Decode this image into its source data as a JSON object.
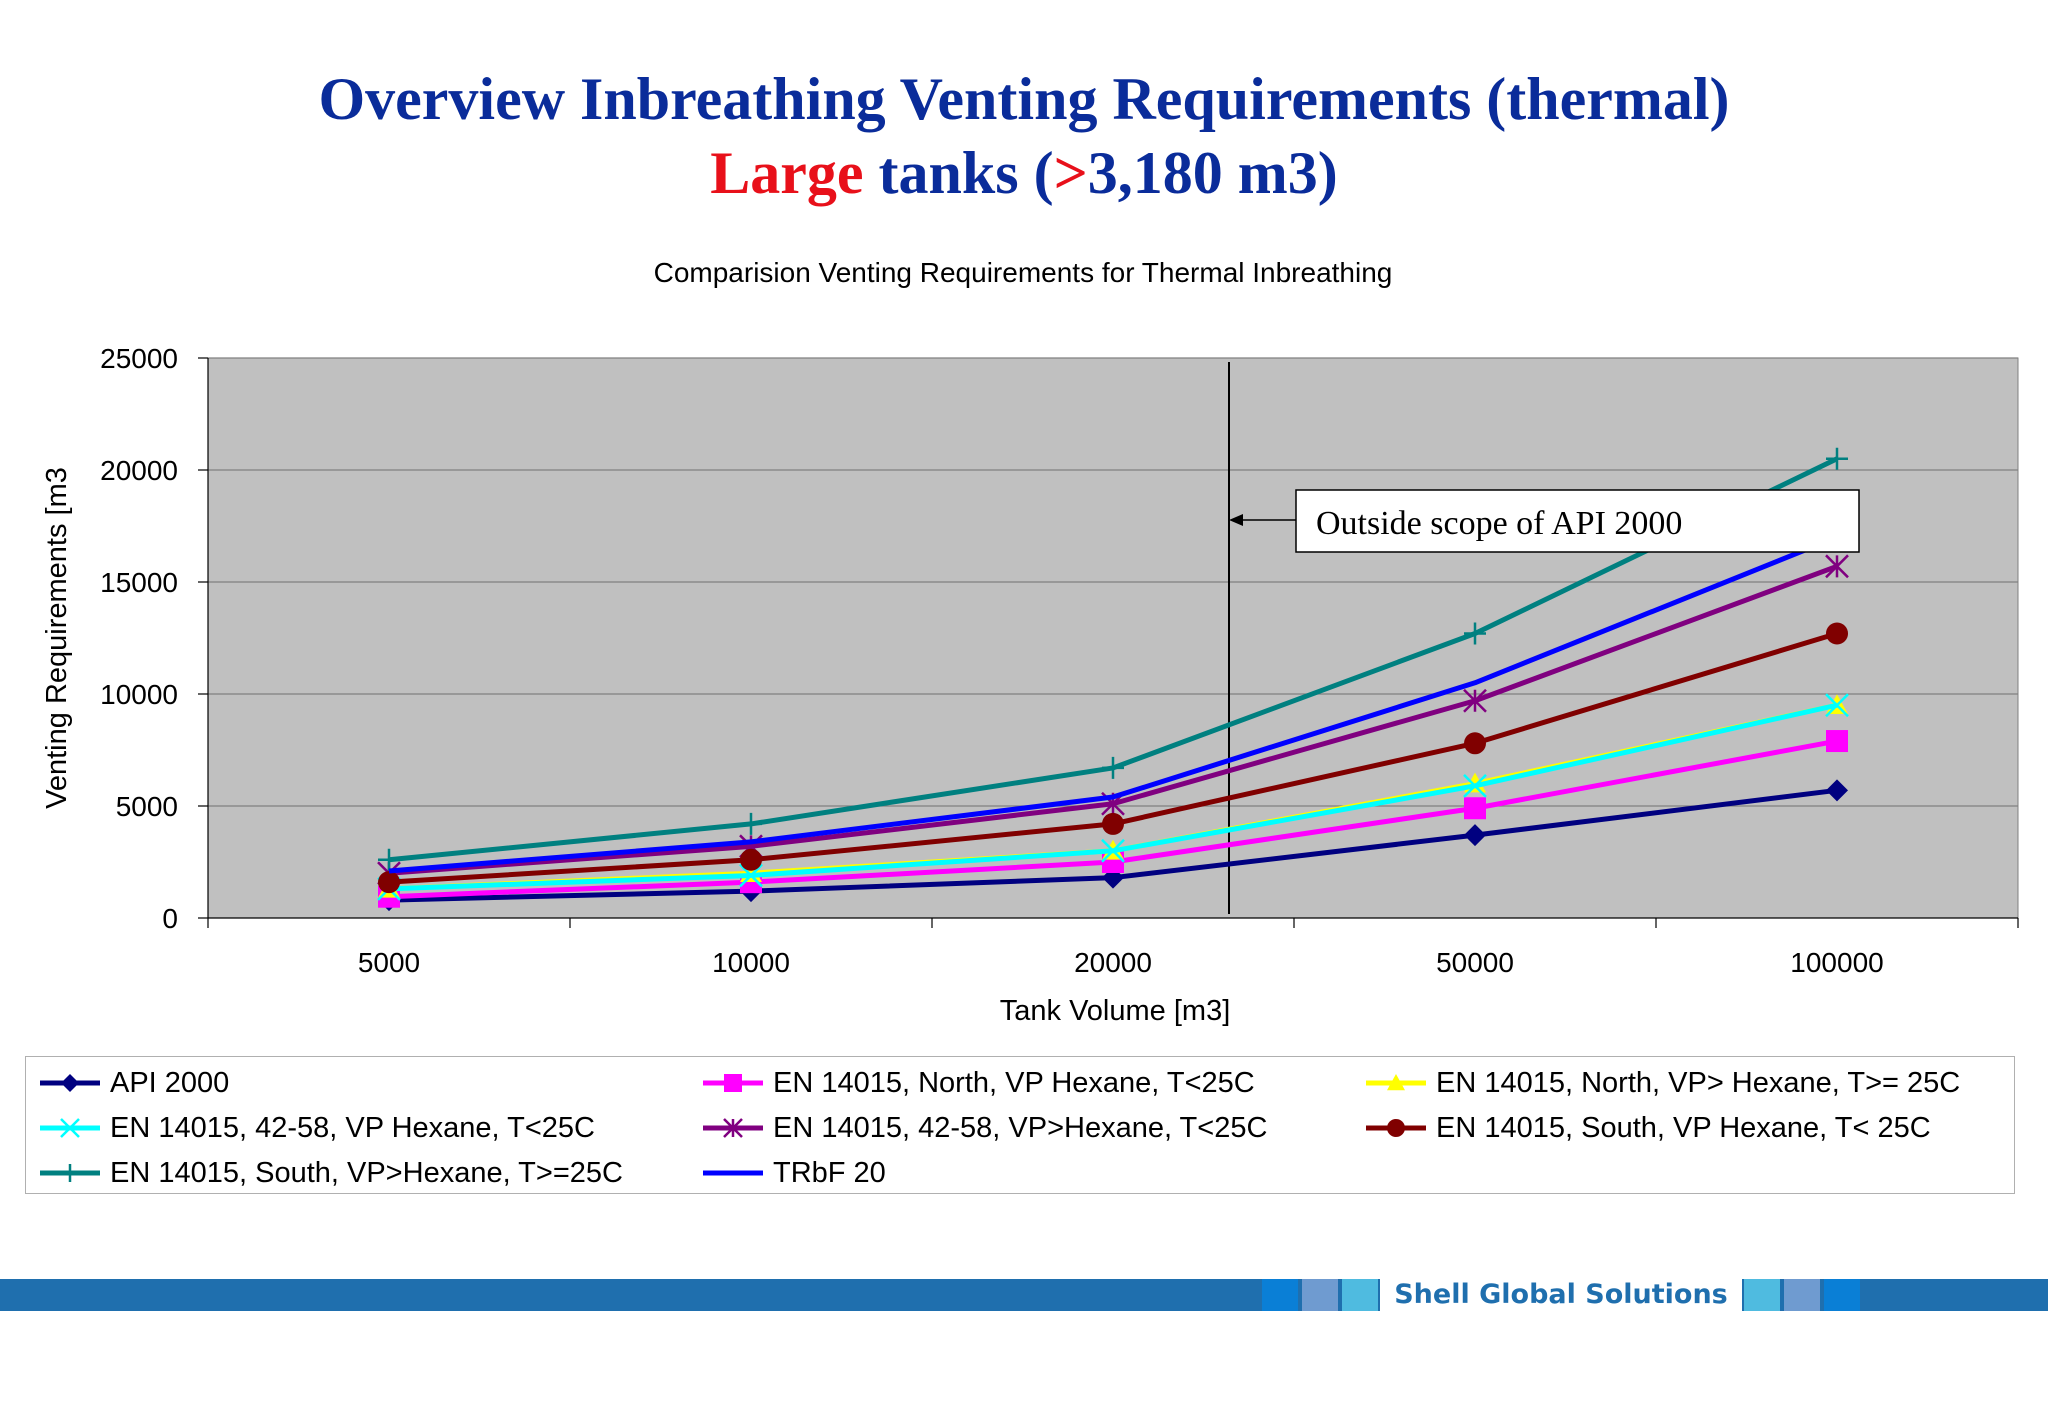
{
  "slide": {
    "title_line1": "Overview Inbreathing Venting Requirements (thermal)",
    "title_large": "Large",
    "title_tanks": " tanks (",
    "title_gt": ">",
    "title_rest": "3,180 m3)"
  },
  "chart_data": {
    "type": "line",
    "title": "Comparision Venting Requirements for Thermal Inbreathing",
    "xlabel": "Tank Volume [m3]",
    "ylabel": "Venting Requirements [m3",
    "categories": [
      "5000",
      "10000",
      "20000",
      "50000",
      "100000"
    ],
    "ylim": [
      0,
      25000
    ],
    "yticks": [
      0,
      5000,
      10000,
      15000,
      20000,
      25000
    ],
    "grid": true,
    "legend_position": "bottom",
    "series": [
      {
        "name": "API 2000",
        "color": "#000080",
        "marker": "diamond",
        "values": [
          800,
          1200,
          1800,
          3700,
          5700
        ]
      },
      {
        "name": "EN 14015, North, VP Hexane, T<25C",
        "color": "#ff00ff",
        "marker": "square",
        "values": [
          950,
          1600,
          2500,
          4900,
          7900
        ]
      },
      {
        "name": "EN 14015, North, VP> Hexane, T>= 25C",
        "color": "#ffff00",
        "marker": "triangle",
        "values": [
          1300,
          2000,
          3000,
          6000,
          9500
        ]
      },
      {
        "name": "EN 14015, 42-58, VP Hexane, T<25C",
        "color": "#00ffff",
        "marker": "x",
        "values": [
          1300,
          1900,
          3000,
          5900,
          9500
        ]
      },
      {
        "name": "EN 14015, 42-58, VP>Hexane, T<25C",
        "color": "#800080",
        "marker": "asterisk",
        "values": [
          2000,
          3200,
          5100,
          9700,
          15700
        ]
      },
      {
        "name": "EN 14015, South, VP Hexane, T< 25C",
        "color": "#800000",
        "marker": "circle",
        "values": [
          1600,
          2600,
          4200,
          7800,
          12700
        ]
      },
      {
        "name": "EN 14015, South, VP>Hexane, T>=25C",
        "color": "#008080",
        "marker": "plus",
        "values": [
          2600,
          4200,
          6700,
          12700,
          20500
        ]
      },
      {
        "name": "TRbF 20",
        "color": "#0000ff",
        "marker": "none",
        "values": [
          2100,
          3400,
          5400,
          10500,
          17000
        ]
      }
    ],
    "annotation": {
      "text": "Outside scope of API 2000",
      "boundary_between": [
        "20000",
        "50000"
      ]
    }
  },
  "footer": {
    "brand": "Shell Global Solutions",
    "colors": {
      "bar": "#1f6fae",
      "block_dark": "#0a7fd6",
      "block_mid": "#6f9bd0",
      "block_light": "#4fbbe0"
    }
  }
}
